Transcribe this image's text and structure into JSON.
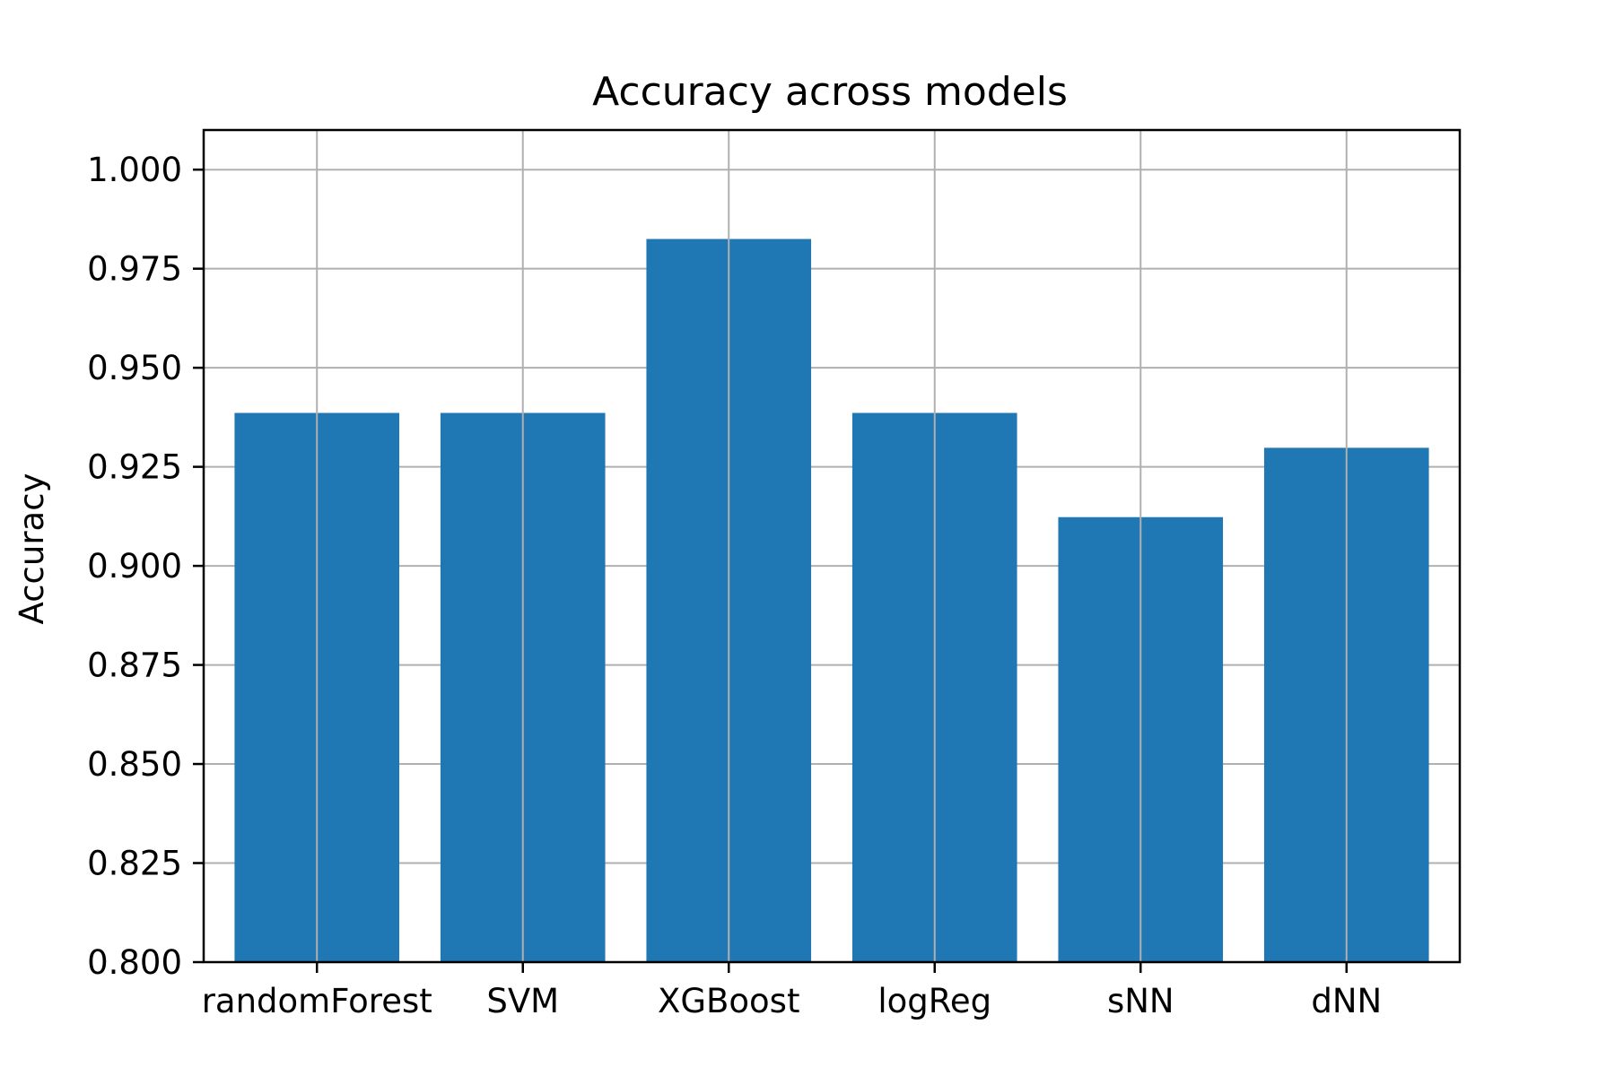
{
  "chart_data": {
    "type": "bar",
    "title": "Accuracy across models",
    "xlabel": "",
    "ylabel": "Accuracy",
    "categories": [
      "randomForest",
      "SVM",
      "XGBoost",
      "logReg",
      "sNN",
      "dNN"
    ],
    "values": [
      0.9386,
      0.9386,
      0.9825,
      0.9386,
      0.9123,
      0.9298
    ],
    "ylim": [
      0.8,
      1.01
    ],
    "yticks": [
      "0.800",
      "0.825",
      "0.850",
      "0.875",
      "0.900",
      "0.925",
      "0.950",
      "0.975",
      "1.000"
    ],
    "grid": true,
    "colors": {
      "bar": "#1f77b4",
      "grid": "#b0b0b0",
      "axis": "#000000"
    }
  }
}
